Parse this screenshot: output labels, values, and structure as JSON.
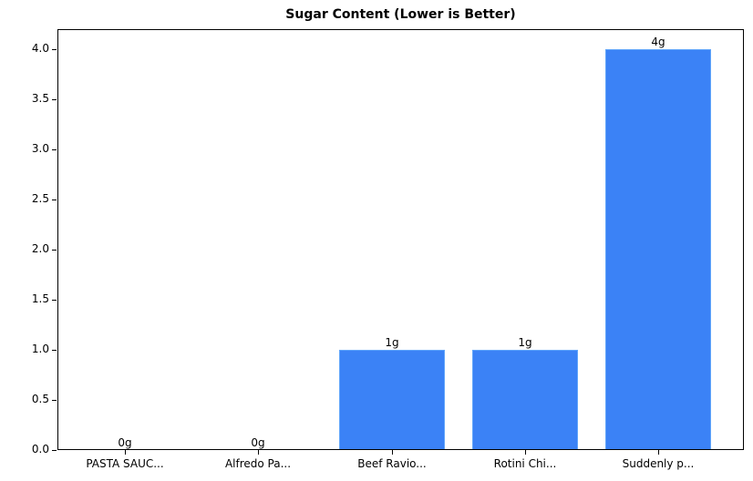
{
  "chart_data": {
    "type": "bar",
    "title": "Sugar Content (Lower is Better)",
    "xlabel": "",
    "ylabel": "",
    "categories": [
      "PASTA SAUC...",
      "Alfredo Pa...",
      "Beef Ravio...",
      "Rotini Chi...",
      "Suddenly p..."
    ],
    "values": [
      0,
      0,
      1,
      1,
      4
    ],
    "data_labels": [
      "0g",
      "0g",
      "1g",
      "1g",
      "4g"
    ],
    "ylim": [
      0,
      4.2
    ],
    "yticks": [
      "0.0",
      "0.5",
      "1.0",
      "1.5",
      "2.0",
      "2.5",
      "3.0",
      "3.5",
      "4.0"
    ],
    "grid": false,
    "legend": null,
    "bar_color": "#3b82f6",
    "bar_edge_color": "#60a5fa"
  }
}
